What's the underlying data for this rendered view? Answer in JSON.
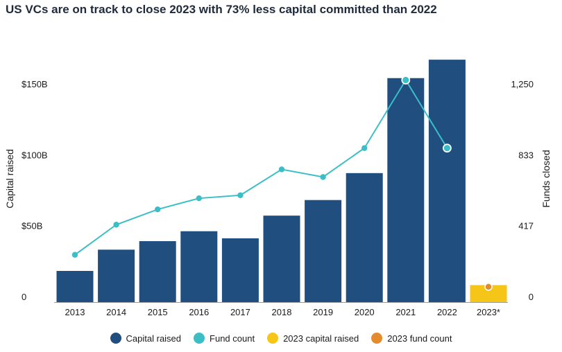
{
  "title": "US VCs are on track to close 2023 with 73% less capital committed than 2022",
  "colors": {
    "capital": "#1f4e7f",
    "fund": "#3bbec6",
    "capital_2023": "#f5c518",
    "fund_2023": "#e58b2e"
  },
  "chart_data": {
    "type": "bar",
    "categories": [
      "2013",
      "2014",
      "2015",
      "2016",
      "2017",
      "2018",
      "2019",
      "2020",
      "2021",
      "2022",
      "2023*"
    ],
    "series": [
      {
        "name": "Capital raised",
        "type": "bar",
        "axis": "left",
        "values": [
          22,
          37,
          43,
          50,
          45,
          61,
          72,
          91,
          158,
          171,
          null
        ]
      },
      {
        "name": "Fund count",
        "type": "line",
        "axis": "right",
        "values": [
          278,
          455,
          545,
          610,
          628,
          780,
          735,
          905,
          1305,
          905,
          null
        ]
      },
      {
        "name": "2023 capital raised",
        "type": "bar",
        "axis": "left",
        "values": [
          null,
          null,
          null,
          null,
          null,
          null,
          null,
          null,
          null,
          null,
          12
        ]
      },
      {
        "name": "2023 fund count",
        "type": "point",
        "axis": "right",
        "values": [
          null,
          null,
          null,
          null,
          null,
          null,
          null,
          null,
          null,
          null,
          90
        ]
      }
    ],
    "ylabel_left": "Capital raised",
    "ylabel_right": "Funds closed",
    "ylim_left": [
      0,
      150
    ],
    "ylim_right": [
      0,
      1250
    ],
    "yticks_left": [
      {
        "value": 0,
        "label": "0"
      },
      {
        "value": 50,
        "label": "$50B"
      },
      {
        "value": 100,
        "label": "$100B"
      },
      {
        "value": 150,
        "label": "$150B"
      }
    ],
    "yticks_right": [
      {
        "value": 0,
        "label": "0"
      },
      {
        "value": 417,
        "label": "417"
      },
      {
        "value": 833,
        "label": "833"
      },
      {
        "value": 1250,
        "label": "1,250"
      }
    ],
    "grid": false,
    "legend_position": "bottom"
  },
  "legend": [
    {
      "label": "Capital raised",
      "color_key": "capital"
    },
    {
      "label": "Fund count",
      "color_key": "fund"
    },
    {
      "label": "2023 capital raised",
      "color_key": "capital_2023"
    },
    {
      "label": "2023 fund count",
      "color_key": "fund_2023"
    }
  ]
}
